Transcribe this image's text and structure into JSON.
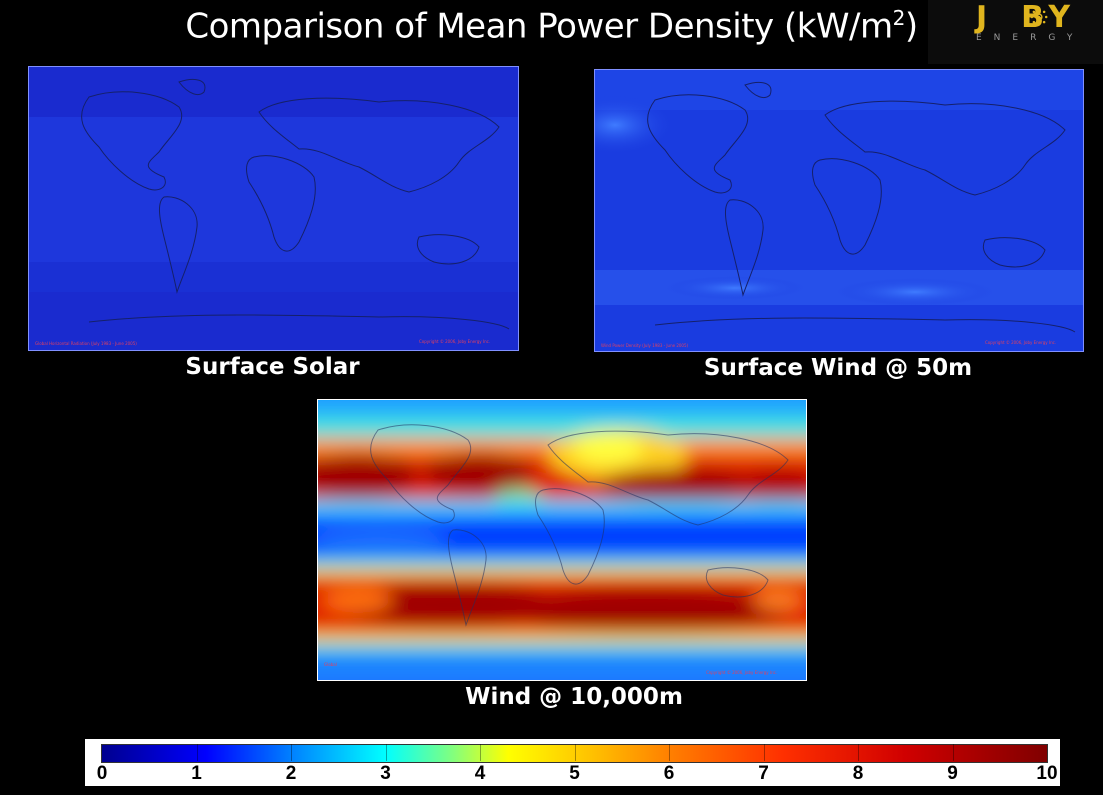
{
  "title": {
    "text": "Comparison of Mean Power Density (kW/m",
    "sup": "2",
    "close": ")"
  },
  "logo": {
    "word_left": "J",
    "word_right": "BY",
    "sub": "ENERGY"
  },
  "maps": [
    {
      "caption": "Surface Solar",
      "footer_left": "Global Horizontal Radiation (July 1983 - June 2005)",
      "footer_right": "Copyright © 2006, Joby Energy Inc.",
      "base_color": "#1b2fd6"
    },
    {
      "caption": "Surface Wind @ 50m",
      "footer_left": "Wind Power Density (July 1983 - June 2005)",
      "footer_right": "Copyright © 2006, Joby Energy Inc.",
      "base_color": "#1a3ce0"
    },
    {
      "caption": "Wind @ 10,000m",
      "footer_left": "Global",
      "footer_right": "Copyright © 2006, Joby Energy Inc.",
      "base_color": "#0000ff"
    }
  ],
  "colorbar": {
    "ticks": [
      "0",
      "1",
      "2",
      "3",
      "4",
      "5",
      "6",
      "7",
      "8",
      "9",
      "10"
    ],
    "range": [
      0,
      10
    ],
    "unit": "kW/m2"
  }
}
